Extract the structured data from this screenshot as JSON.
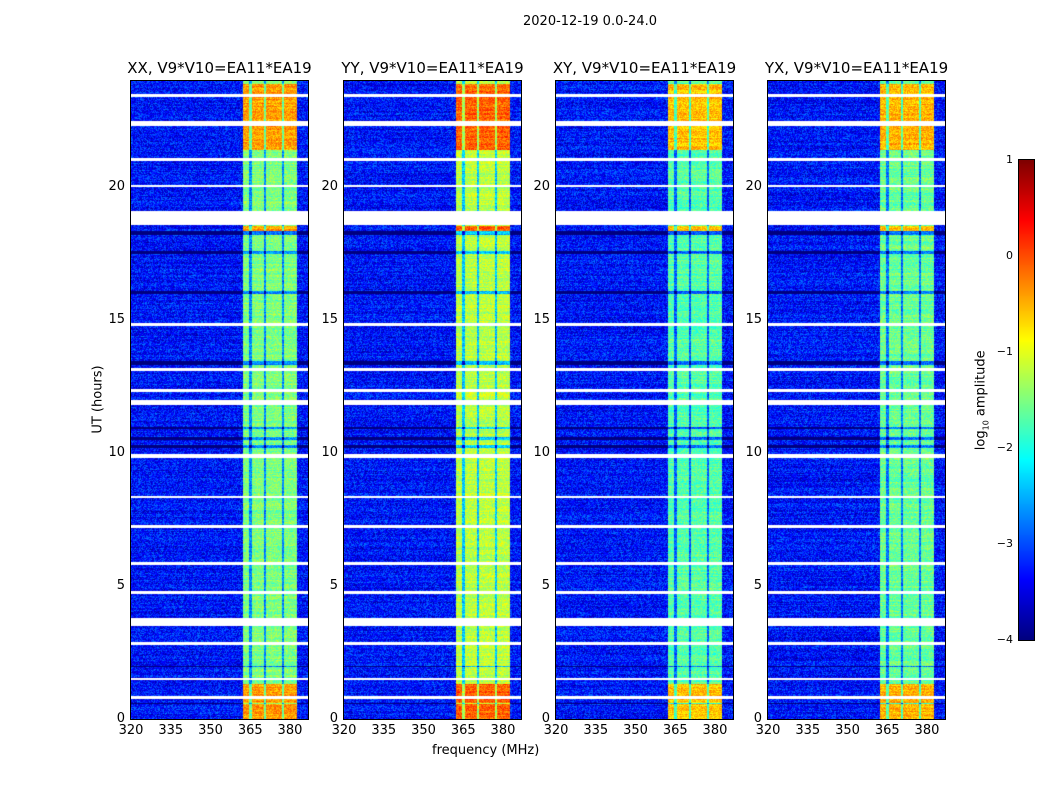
{
  "chart_data": {
    "type": "heatmap",
    "suptitle": "2020-12-19 0.0-24.0",
    "xlabel": "frequency (MHz)",
    "ylabel": "UT (hours)",
    "xlim": [
      320,
      386.8
    ],
    "ylim": [
      0,
      24
    ],
    "xticks": [
      "320",
      "335",
      "350",
      "365",
      "380"
    ],
    "xtick_values": [
      320,
      335,
      350,
      365,
      380
    ],
    "yticks": [
      "0",
      "5",
      "10",
      "15",
      "20"
    ],
    "ytick_values": [
      0,
      5,
      10,
      15,
      20
    ],
    "panels": [
      {
        "title": "XX, V9*V10=EA11*EA19",
        "band_boost": 0.0
      },
      {
        "title": "YY, V9*V10=EA11*EA19",
        "band_boost": 0.3
      },
      {
        "title": "XY, V9*V10=EA11*EA19",
        "band_boost": -0.2
      },
      {
        "title": "YX, V9*V10=EA11*EA19",
        "band_boost": -0.1
      }
    ],
    "background_level": -3.3,
    "band_mhz": [
      362.3,
      382.6
    ],
    "band_level": -1.5,
    "band_notches_mhz": [
      365.2,
      370.6,
      377.4
    ],
    "flagged_hours_white": [
      [
        0.75,
        0.85
      ],
      [
        1.45,
        1.55
      ],
      [
        2.8,
        2.9
      ],
      [
        3.5,
        3.8
      ],
      [
        4.7,
        4.8
      ],
      [
        5.8,
        5.9
      ],
      [
        7.2,
        7.3
      ],
      [
        8.3,
        8.4
      ],
      [
        9.8,
        9.95
      ],
      [
        11.8,
        12.0
      ],
      [
        12.3,
        12.4
      ],
      [
        13.1,
        13.2
      ],
      [
        14.8,
        14.9
      ],
      [
        18.6,
        19.1
      ],
      [
        20.0,
        20.1
      ],
      [
        21.0,
        21.1
      ],
      [
        22.3,
        22.5
      ],
      [
        23.4,
        23.5
      ]
    ],
    "dark_hours": [
      [
        0.55,
        0.6
      ],
      [
        1.95,
        2.0
      ],
      [
        10.2,
        10.3
      ],
      [
        10.5,
        10.6
      ],
      [
        10.9,
        11.0
      ],
      [
        13.3,
        13.45
      ],
      [
        16.0,
        16.1
      ],
      [
        17.5,
        17.6
      ],
      [
        18.2,
        18.35
      ]
    ],
    "hot_hours": [
      [
        0.0,
        1.3
      ],
      [
        18.35,
        18.55
      ],
      [
        21.4,
        23.9
      ]
    ],
    "colorbar": {
      "label": "log10 amplitude",
      "vmin": -4,
      "vmax": 1,
      "ticks": [
        "1",
        "0",
        "−1",
        "−2",
        "−3",
        "−4"
      ],
      "tick_values": [
        1,
        0,
        -1,
        -2,
        -3,
        -4
      ],
      "colormap": "jet"
    }
  }
}
